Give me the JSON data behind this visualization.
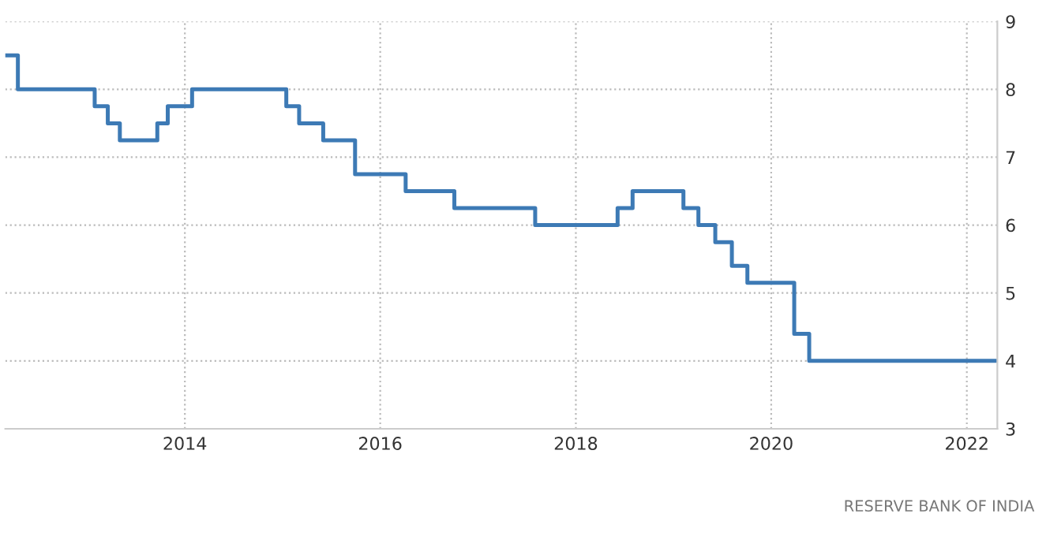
{
  "chart_data": {
    "type": "step",
    "x": [
      "2012-03-01",
      "2012-04-17",
      "2013-01-29",
      "2013-03-19",
      "2013-05-03",
      "2013-09-20",
      "2013-10-29",
      "2014-01-28",
      "2015-01-15",
      "2015-03-04",
      "2015-06-02",
      "2015-09-29",
      "2016-04-05",
      "2016-10-04",
      "2017-08-02",
      "2018-06-06",
      "2018-08-01",
      "2019-02-07",
      "2019-04-04",
      "2019-06-06",
      "2019-08-07",
      "2019-10-04",
      "2020-03-27",
      "2020-05-22",
      "2022-04-20"
    ],
    "series": [
      {
        "color": "#3d7ab5",
        "values": [
          8.5,
          8.0,
          7.75,
          7.5,
          7.25,
          7.5,
          7.75,
          8.0,
          7.75,
          7.5,
          7.25,
          6.75,
          6.5,
          6.25,
          6.0,
          6.25,
          6.5,
          6.25,
          6.0,
          5.75,
          5.4,
          5.15,
          4.4,
          4.0,
          4.0
        ]
      }
    ],
    "xlim": [
      "2012-03-01",
      "2022-04-25"
    ],
    "xticks": [
      "2014",
      "2016",
      "2018",
      "2020",
      "2022"
    ],
    "ylim": [
      3,
      9
    ],
    "yticks": [
      3,
      4,
      5,
      6,
      7,
      8,
      9
    ],
    "grid": true,
    "line_style": "solid",
    "annotations": [
      "RESERVE BANK OF INDIA"
    ]
  }
}
